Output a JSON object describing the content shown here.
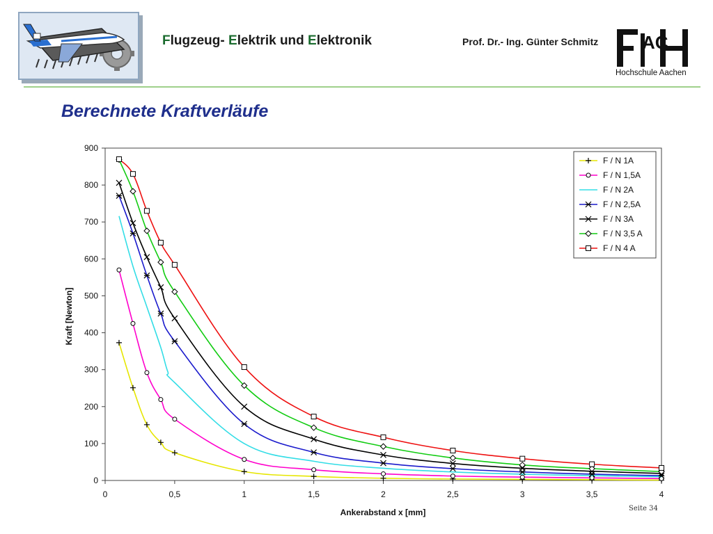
{
  "header": {
    "title_parts": [
      {
        "text": "F",
        "accent": true
      },
      {
        "text": "lugzeug- ",
        "accent": false
      },
      {
        "text": "E",
        "accent": true
      },
      {
        "text": "lektrik und ",
        "accent": false
      },
      {
        "text": "E",
        "accent": true
      },
      {
        "text": "lektronik",
        "accent": false
      }
    ],
    "author": "Prof. Dr.- Ing. Günter Schmitz",
    "university": "Hochschule Aachen"
  },
  "page_title": "Berechnete Kraftverläufe",
  "page_number": "Seite 34",
  "chart_data": {
    "type": "line",
    "xlabel": "Ankerabstand x [mm]",
    "ylabel": "Kraft [Newton]",
    "xlim": [
      0,
      4
    ],
    "ylim": [
      0,
      900
    ],
    "xticks": [
      "0",
      "0,5",
      "1",
      "1,5",
      "2",
      "2,5",
      "3",
      "3,5",
      "4"
    ],
    "yticks": [
      "0",
      "100",
      "200",
      "300",
      "400",
      "500",
      "600",
      "700",
      "800",
      "900"
    ],
    "grid": false,
    "legend_position": "top-right",
    "series": [
      {
        "name": "F / N 1A",
        "color": "#e6e600",
        "marker": "plus",
        "x": [
          0.1,
          0.2,
          0.3,
          0.4,
          0.5,
          1,
          1.5,
          2,
          2.5,
          3,
          3.5,
          4
        ],
        "y": [
          373,
          251,
          151,
          103,
          75,
          24,
          11,
          6,
          4,
          3,
          2,
          1
        ]
      },
      {
        "name": "F / N 1,5A",
        "color": "#ff00cc",
        "marker": "circle",
        "x": [
          0.1,
          0.2,
          0.3,
          0.4,
          0.5,
          1,
          1.5,
          2,
          2.5,
          3,
          3.5,
          4
        ],
        "y": [
          570,
          425,
          292,
          219,
          166,
          57,
          29,
          18,
          12,
          9,
          7,
          5
        ]
      },
      {
        "name": "F / N 2A",
        "color": "#33dde6",
        "marker": "none",
        "x": [
          0.1,
          0.2,
          0.3,
          0.4,
          0.45,
          0.5,
          1,
          1.5,
          2,
          2.5,
          3,
          3.5,
          4
        ],
        "y": [
          716,
          580,
          470,
          360,
          295,
          265,
          100,
          52,
          33,
          23,
          17,
          13,
          10
        ]
      },
      {
        "name": "F / N 2,5A",
        "color": "#1a1acc",
        "marker": "xstar",
        "x": [
          0.1,
          0.2,
          0.3,
          0.4,
          0.5,
          1,
          1.5,
          2,
          2.5,
          3,
          3.5,
          4
        ],
        "y": [
          771,
          669,
          555,
          452,
          377,
          153,
          76,
          47,
          32,
          23,
          17,
          13
        ]
      },
      {
        "name": "F / N 3A",
        "color": "#000000",
        "marker": "x",
        "x": [
          0.1,
          0.2,
          0.3,
          0.4,
          0.5,
          1,
          1.5,
          2,
          2.5,
          3,
          3.5,
          4
        ],
        "y": [
          806,
          697,
          605,
          523,
          439,
          200,
          112,
          69,
          46,
          33,
          25,
          19
        ]
      },
      {
        "name": "F / N  3,5 A",
        "color": "#11cc11",
        "marker": "diamond",
        "x": [
          0.1,
          0.2,
          0.3,
          0.4,
          0.5,
          1,
          1.5,
          2,
          2.5,
          3,
          3.5,
          4
        ],
        "y": [
          869,
          783,
          676,
          591,
          511,
          257,
          143,
          92,
          61,
          42,
          32,
          24
        ]
      },
      {
        "name": "F / N 4 A",
        "color": "#ee1111",
        "marker": "square",
        "x": [
          0.1,
          0.2,
          0.3,
          0.4,
          0.5,
          1,
          1.5,
          2,
          2.5,
          3,
          3.5,
          4
        ],
        "y": [
          870,
          830,
          730,
          644,
          584,
          307,
          173,
          117,
          81,
          59,
          44,
          34
        ]
      }
    ]
  }
}
